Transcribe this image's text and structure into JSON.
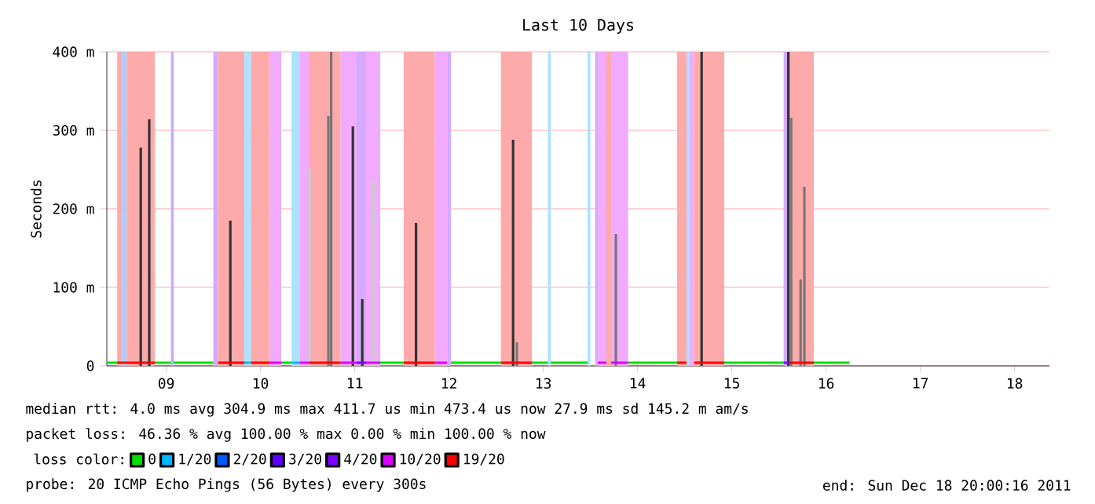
{
  "chart_data": {
    "type": "line",
    "title": "Last 10 Days",
    "ylabel": "Seconds",
    "legend_title": "loss color:",
    "legend": "bottom",
    "grid": "y",
    "xlim": [
      8.37,
      18.37
    ],
    "xticks": [
      {
        "value": 9,
        "label": "09"
      },
      10,
      11,
      12,
      13,
      14,
      15,
      16,
      17,
      18
    ],
    "ylim": [
      0,
      400
    ],
    "yticks": [
      0,
      {
        "value": 100,
        "label": "100 m"
      },
      {
        "value": 200,
        "label": "200 m"
      },
      {
        "value": 300,
        "label": "300 m"
      },
      {
        "value": 400,
        "label": "400 m"
      }
    ],
    "series": [
      {
        "name": "0",
        "color": "#00e000",
        "x": [
          8.37,
          8.48,
          null,
          8.88,
          9.05,
          null,
          9.08,
          9.5,
          null,
          10.22,
          10.33,
          null,
          11.27,
          11.52,
          null,
          12.02,
          12.55,
          null,
          12.88,
          13.05,
          null,
          13.08,
          13.47,
          null,
          13.9,
          14.42,
          null,
          14.92,
          15.55,
          null,
          15.87,
          16.25
        ],
        "values": [
          4,
          4,
          null,
          4,
          4,
          null,
          4,
          4,
          null,
          4,
          4,
          null,
          4,
          4,
          null,
          4,
          4,
          null,
          4,
          4,
          null,
          4,
          4,
          null,
          4,
          4,
          null,
          4,
          4,
          null,
          4,
          4
        ]
      },
      {
        "name": "1/20",
        "color": "#00b8ff",
        "x": [
          9.83,
          9.9,
          null,
          10.33,
          10.42
        ],
        "values": [
          4,
          4,
          null,
          4,
          4
        ]
      },
      {
        "name": "2/20",
        "color": "#0059ff"
      },
      {
        "name": "3/20",
        "color": "#5e00ff"
      },
      {
        "name": "4/20",
        "color": "#7e00ff",
        "x": [
          11.02,
          11.12,
          null,
          15.55,
          15.62
        ],
        "values": [
          4,
          4,
          null,
          4,
          4
        ]
      },
      {
        "name": "10/20",
        "color": "#dd00ff",
        "x": [
          10.1,
          10.22,
          null,
          10.42,
          10.52,
          null,
          10.85,
          11.02,
          null,
          11.12,
          11.27,
          null,
          11.85,
          11.98,
          null,
          13.58,
          13.67,
          null,
          13.72,
          13.9
        ],
        "values": [
          4,
          4,
          null,
          4,
          4,
          null,
          4,
          4,
          null,
          4,
          4,
          null,
          4,
          4,
          null,
          4,
          4,
          null,
          4,
          4
        ]
      },
      {
        "name": "19/20",
        "color": "#ff0000",
        "x": [
          8.48,
          8.88,
          null,
          9.55,
          9.83,
          null,
          9.9,
          10.1,
          null,
          10.52,
          10.85,
          null,
          11.52,
          11.85,
          null,
          12.55,
          12.88,
          null,
          14.42,
          14.52,
          null,
          14.6,
          14.92,
          null,
          15.62,
          15.87
        ],
        "values": [
          4,
          4,
          null,
          4,
          4,
          null,
          4,
          4,
          null,
          4,
          4,
          null,
          4,
          4,
          null,
          4,
          4,
          null,
          4,
          4,
          null,
          4,
          4,
          null,
          4,
          4
        ]
      },
      {
        "type": "bar",
        "color": "#333333",
        "x": [
          8.73,
          8.82,
          9.68,
          10.98,
          11.08,
          11.65,
          12.68,
          14.68,
          15.6
        ],
        "values": [
          278,
          314,
          185,
          305,
          85,
          182,
          288,
          400,
          400
        ]
      },
      {
        "type": "bar",
        "color": "#777777",
        "x": [
          10.72,
          10.75,
          12.72,
          13.77,
          15.63,
          15.73,
          15.77
        ],
        "values": [
          318,
          400,
          30,
          168,
          316,
          110,
          228
        ]
      },
      {
        "type": "bar",
        "color": "#cccccc",
        "x": [
          10.52,
          11.2
        ],
        "values": [
          250,
          235
        ]
      }
    ],
    "bands": [
      {
        "axis": "x",
        "from": 8.48,
        "to": 8.53,
        "color": "#ffaaaa"
      },
      {
        "axis": "x",
        "from": 8.53,
        "to": 8.58,
        "color": "#aaccff"
      },
      {
        "axis": "x",
        "from": 8.58,
        "to": 8.88,
        "color": "#ffaaaa"
      },
      {
        "axis": "x",
        "from": 9.05,
        "to": 9.08,
        "color": "#c8aaff"
      },
      {
        "axis": "x",
        "from": 9.5,
        "to": 9.55,
        "color": "#d4aaff"
      },
      {
        "axis": "x",
        "from": 9.55,
        "to": 9.83,
        "color": "#ffaaaa"
      },
      {
        "axis": "x",
        "from": 9.83,
        "to": 9.9,
        "color": "#aae2ff"
      },
      {
        "axis": "x",
        "from": 9.9,
        "to": 10.1,
        "color": "#ffaaaa"
      },
      {
        "axis": "x",
        "from": 10.1,
        "to": 10.22,
        "color": "#f2aaff"
      },
      {
        "axis": "x",
        "from": 10.33,
        "to": 10.42,
        "color": "#aae2ff"
      },
      {
        "axis": "x",
        "from": 10.42,
        "to": 10.52,
        "color": "#f2aaff"
      },
      {
        "axis": "x",
        "from": 10.52,
        "to": 10.85,
        "color": "#ffaaaa"
      },
      {
        "axis": "x",
        "from": 10.85,
        "to": 11.02,
        "color": "#f2aaff"
      },
      {
        "axis": "x",
        "from": 11.02,
        "to": 11.12,
        "color": "#d4aaff"
      },
      {
        "axis": "x",
        "from": 11.12,
        "to": 11.27,
        "color": "#f2aaff"
      },
      {
        "axis": "x",
        "from": 11.52,
        "to": 11.85,
        "color": "#ffaaaa"
      },
      {
        "axis": "x",
        "from": 11.85,
        "to": 11.98,
        "color": "#f2aaff"
      },
      {
        "axis": "x",
        "from": 11.98,
        "to": 12.02,
        "color": "#d4aaff"
      },
      {
        "axis": "x",
        "from": 12.55,
        "to": 12.88,
        "color": "#ffaaaa"
      },
      {
        "axis": "x",
        "from": 13.05,
        "to": 13.08,
        "color": "#aae2ff"
      },
      {
        "axis": "x",
        "from": 13.47,
        "to": 13.5,
        "color": "#aae2ff"
      },
      {
        "axis": "x",
        "from": 13.55,
        "to": 13.58,
        "color": "#d4aaff"
      },
      {
        "axis": "x",
        "from": 13.58,
        "to": 13.67,
        "color": "#f2aaff"
      },
      {
        "axis": "x",
        "from": 13.67,
        "to": 13.72,
        "color": "#ffaaaa"
      },
      {
        "axis": "x",
        "from": 13.72,
        "to": 13.9,
        "color": "#f2aaff"
      },
      {
        "axis": "x",
        "from": 14.42,
        "to": 14.52,
        "color": "#ffaaaa"
      },
      {
        "axis": "x",
        "from": 14.52,
        "to": 14.55,
        "color": "#aae2ff"
      },
      {
        "axis": "x",
        "from": 14.55,
        "to": 14.6,
        "color": "#f2aaff"
      },
      {
        "axis": "x",
        "from": 14.6,
        "to": 14.92,
        "color": "#ffaaaa"
      },
      {
        "axis": "x",
        "from": 15.55,
        "to": 15.62,
        "color": "#d4aaff"
      },
      {
        "axis": "x",
        "from": 15.62,
        "to": 15.87,
        "color": "#ffaaaa"
      }
    ],
    "annotations": [
      "median rtt: 4.0 ms avg 304.9 ms max 411.7 us min 473.4 us now 27.9 ms sd 145.2 m am/s",
      "packet loss: 46.36 % avg 100.00 % max 0.00 % min 100.00 % now",
      "probe: 20 ICMP Echo Pings (56 Bytes) every 300s",
      "end: Sun Dec 18 20:00:16 2011"
    ]
  }
}
